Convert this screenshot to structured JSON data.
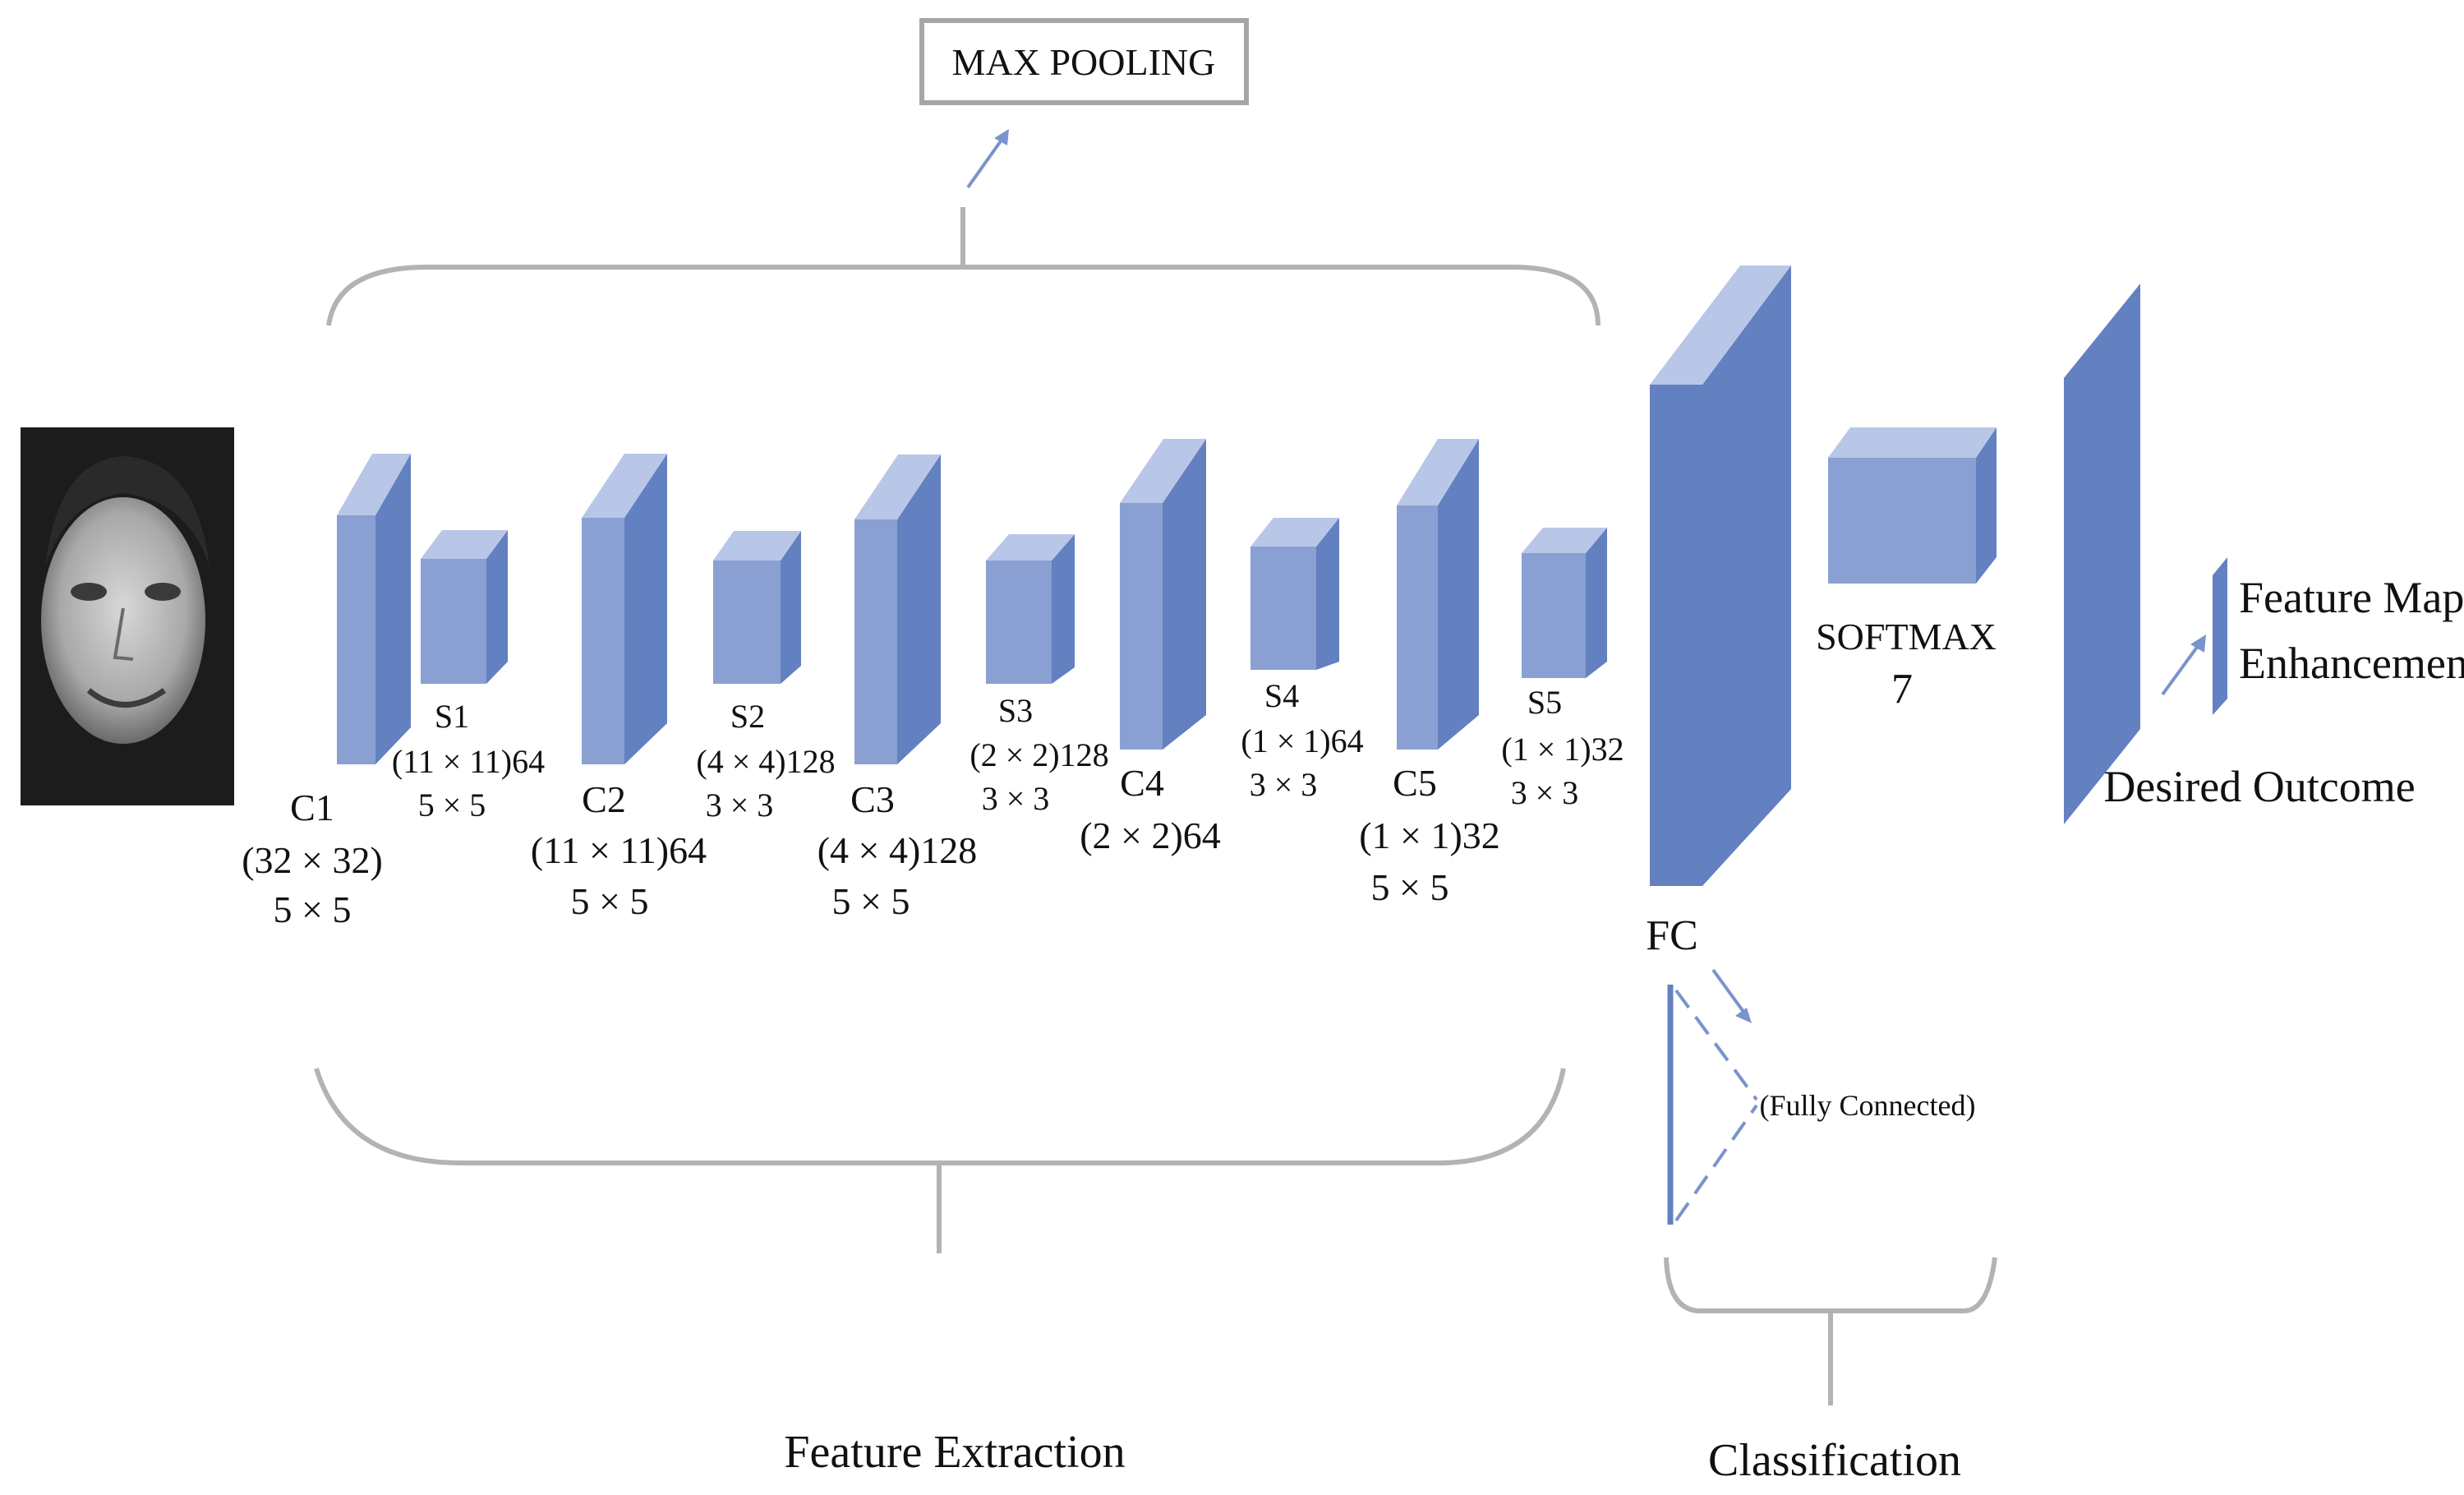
{
  "title_box": {
    "label": "MAX POOLING"
  },
  "colors": {
    "block_front": "#8aa0d2",
    "block_side": "#6380c0",
    "block_top": "#b8c7e8",
    "bracket": "#b3b3b3",
    "arrow": "#7a93cc"
  },
  "input_image": {
    "icon": "face-photo"
  },
  "layers": [
    {
      "id": "c1",
      "name": "C1",
      "size": "(32 × 32)",
      "kernel": "5 × 5"
    },
    {
      "id": "s1",
      "name": "S1",
      "size": "(11 × 11)64",
      "kernel": "5 × 5"
    },
    {
      "id": "c2",
      "name": "C2",
      "size": "(11 × 11)64",
      "kernel": "5 × 5"
    },
    {
      "id": "s2",
      "name": "S2",
      "size": "(4 × 4)128",
      "kernel": "3 × 3"
    },
    {
      "id": "c3",
      "name": "C3",
      "size": "(4 × 4)128",
      "kernel": "5 × 5"
    },
    {
      "id": "s3",
      "name": "S3",
      "size": "(2 × 2)128",
      "kernel": "3 × 3"
    },
    {
      "id": "c4",
      "name": "C4",
      "size": "(2 × 2)64",
      "kernel": ""
    },
    {
      "id": "s4",
      "name": "S4",
      "size": "(1 × 1)64",
      "kernel": "3 × 3"
    },
    {
      "id": "c5",
      "name": "C5",
      "size": "(1 × 1)32",
      "kernel": "5 × 5"
    },
    {
      "id": "s5",
      "name": "S5",
      "size": "(1 × 1)32",
      "kernel": "3 × 3"
    }
  ],
  "fc": {
    "label": "FC",
    "note": "(Fully Connected)"
  },
  "softmax": {
    "label": "SOFTMAX",
    "value": "7"
  },
  "outcome": {
    "label": "Desired Outcome"
  },
  "enhancement": {
    "line1": "Feature Map",
    "line2": "Enhancement"
  },
  "sections": {
    "feature_extraction": "Feature Extraction",
    "classification": "Classification"
  }
}
